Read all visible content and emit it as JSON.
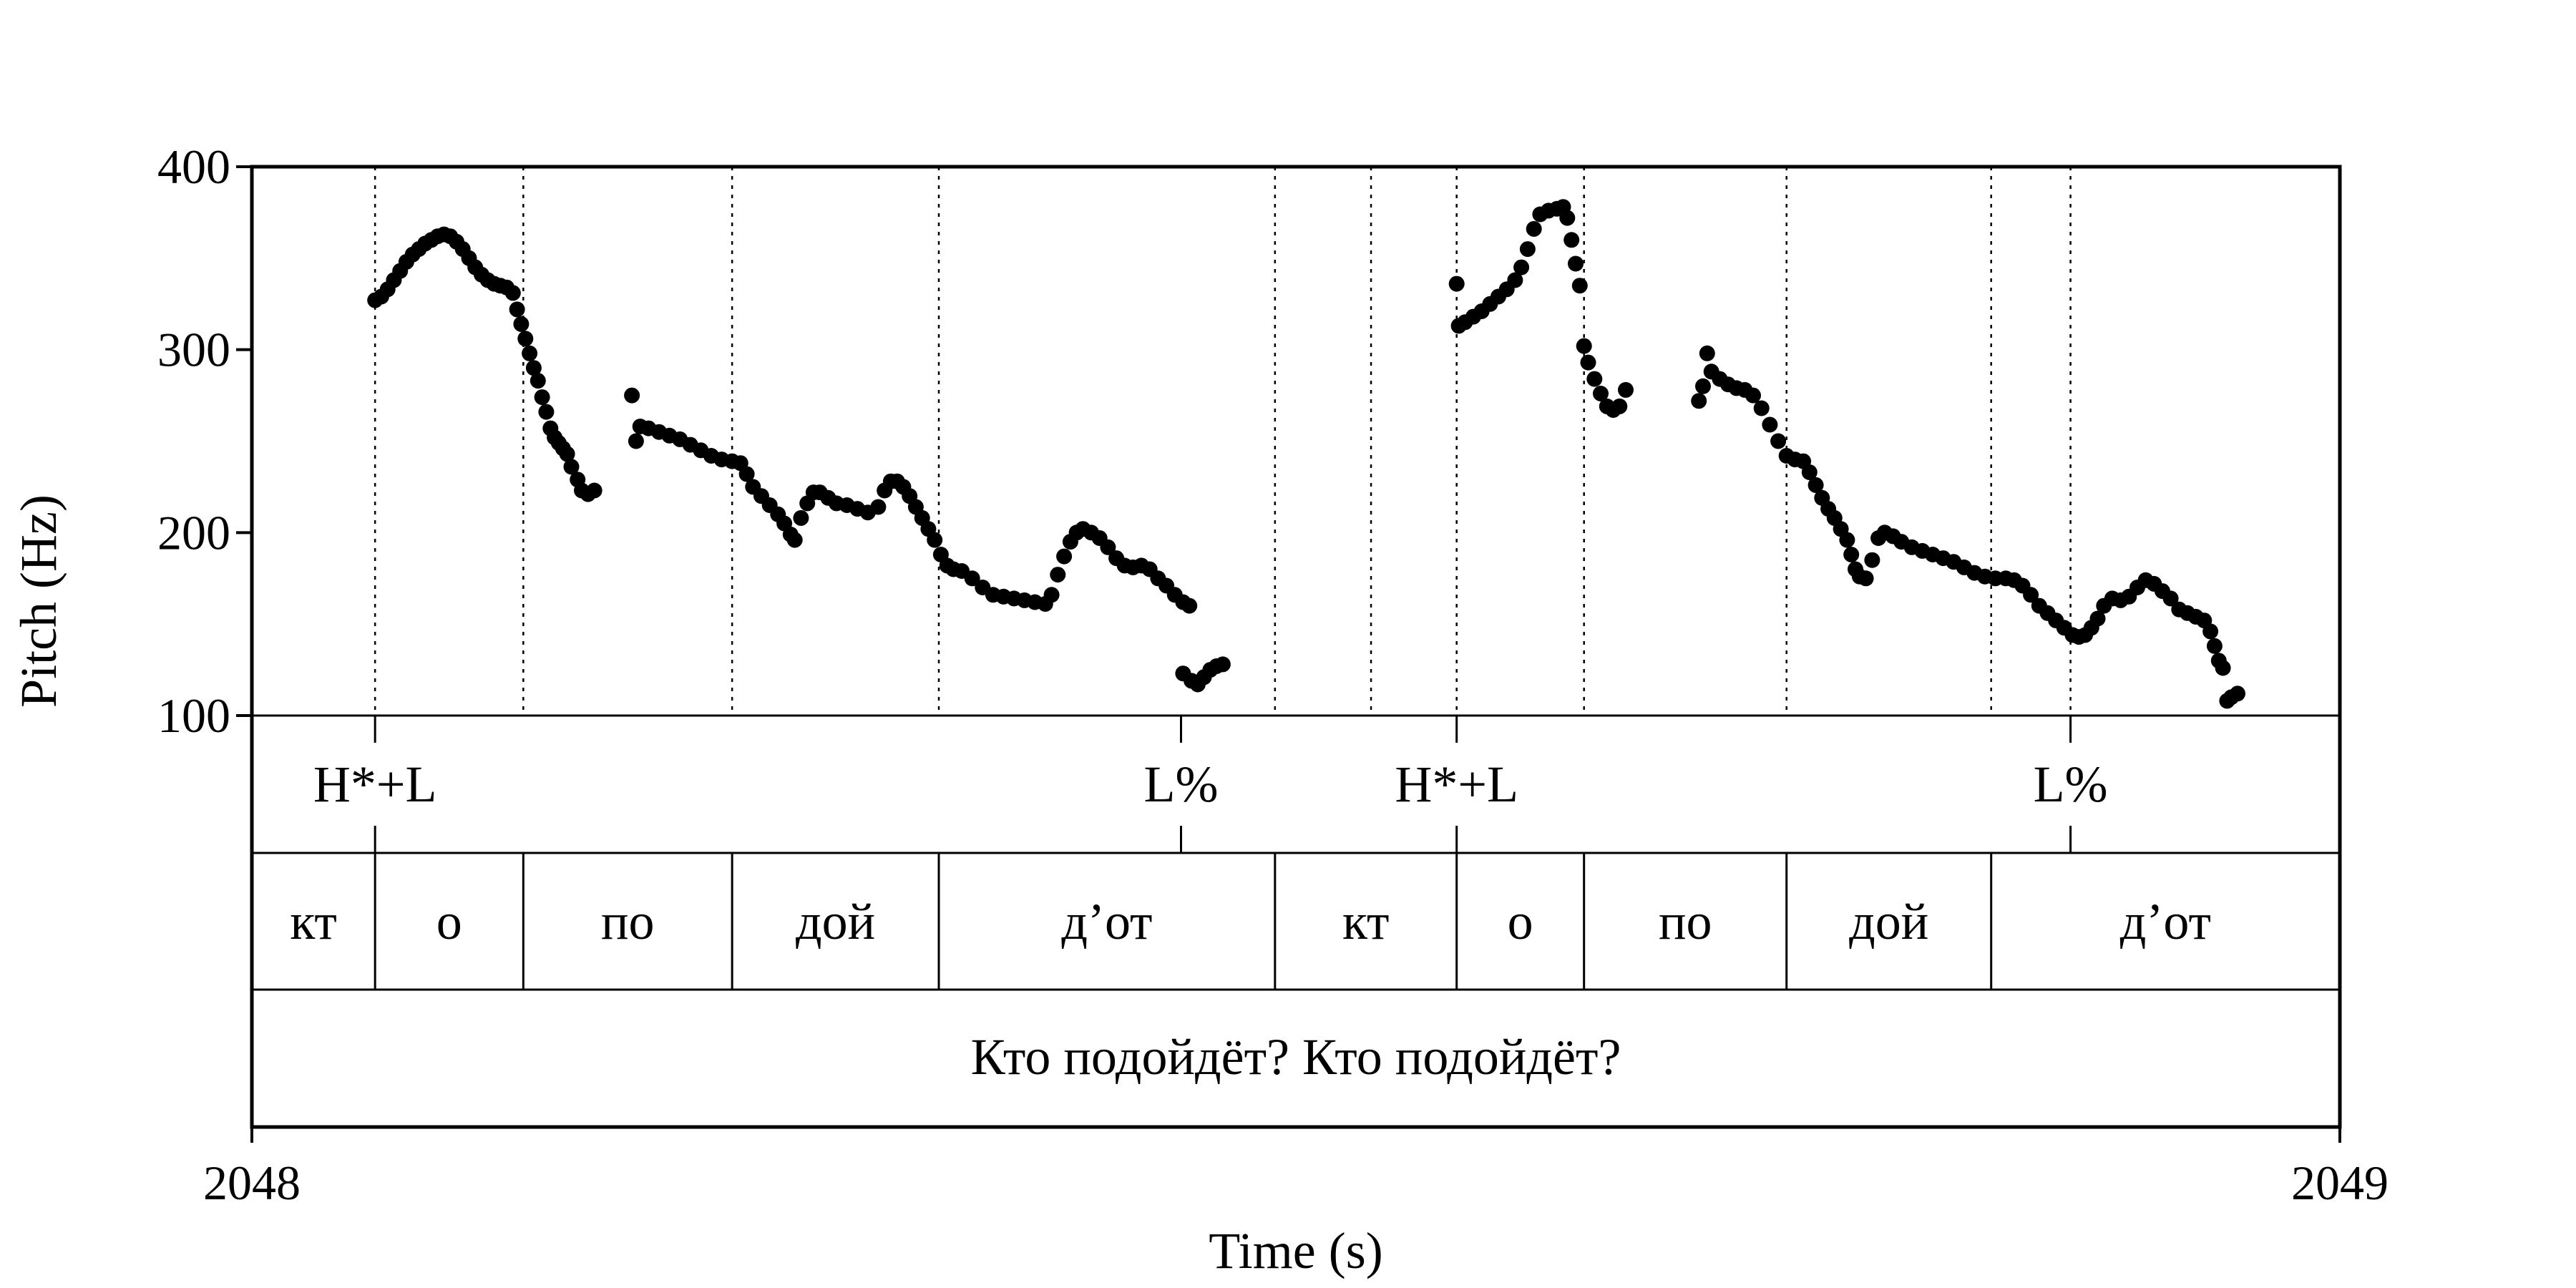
{
  "chart_data": {
    "type": "scatter",
    "title": "",
    "xlabel": "Time (s)",
    "ylabel": "Pitch (Hz)",
    "xlim": [
      2048,
      2049
    ],
    "ylim": [
      100,
      400
    ],
    "x_tick_labels": [
      "2048",
      "2049"
    ],
    "y_ticks": [
      100,
      200,
      300,
      400
    ],
    "y_tick_labels": [
      "100",
      "200",
      "300",
      "400"
    ],
    "grid": false,
    "legend": "none",
    "boundaries": [
      2048.059,
      2048.13,
      2048.23,
      2048.329,
      2048.49,
      2048.536,
      2048.577,
      2048.638,
      2048.735,
      2048.833,
      2048.871
    ],
    "tone_tier": {
      "points": [
        {
          "time": 2048.059,
          "label": "H*+L"
        },
        {
          "time": 2048.445,
          "label": "L%"
        },
        {
          "time": 2048.577,
          "label": "H*+L"
        },
        {
          "time": 2048.871,
          "label": "L%"
        }
      ]
    },
    "syllable_tier": {
      "intervals": [
        {
          "start": 2048.0,
          "end": 2048.059,
          "label": "кт"
        },
        {
          "start": 2048.059,
          "end": 2048.13,
          "label": "о"
        },
        {
          "start": 2048.13,
          "end": 2048.23,
          "label": "по"
        },
        {
          "start": 2048.23,
          "end": 2048.329,
          "label": "дой"
        },
        {
          "start": 2048.329,
          "end": 2048.49,
          "label": "д’от"
        },
        {
          "start": 2048.49,
          "end": 2048.577,
          "label": "кт"
        },
        {
          "start": 2048.577,
          "end": 2048.638,
          "label": "о"
        },
        {
          "start": 2048.638,
          "end": 2048.735,
          "label": "по"
        },
        {
          "start": 2048.735,
          "end": 2048.833,
          "label": "дой"
        },
        {
          "start": 2048.833,
          "end": 2049.0,
          "label": "д’от"
        }
      ]
    },
    "sentence_tier": {
      "label": "Кто подойдёт? Кто подойдёт?"
    },
    "series": [
      {
        "points": [
          [
            2048.059,
            327
          ],
          [
            2048.062,
            329
          ],
          [
            2048.065,
            333
          ],
          [
            2048.068,
            338
          ],
          [
            2048.071,
            343
          ],
          [
            2048.074,
            348
          ],
          [
            2048.077,
            352
          ],
          [
            2048.08,
            355
          ],
          [
            2048.083,
            358
          ],
          [
            2048.086,
            360
          ],
          [
            2048.089,
            362
          ],
          [
            2048.092,
            363
          ],
          [
            2048.095,
            362
          ],
          [
            2048.098,
            359
          ],
          [
            2048.101,
            355
          ],
          [
            2048.104,
            350
          ],
          [
            2048.107,
            345
          ],
          [
            2048.11,
            341
          ],
          [
            2048.113,
            338
          ],
          [
            2048.116,
            336
          ],
          [
            2048.119,
            335
          ],
          [
            2048.122,
            334
          ],
          [
            2048.125,
            331
          ],
          [
            2048.127,
            322
          ],
          [
            2048.129,
            314
          ],
          [
            2048.131,
            306
          ],
          [
            2048.133,
            298
          ],
          [
            2048.135,
            290
          ],
          [
            2048.137,
            283
          ],
          [
            2048.139,
            274
          ],
          [
            2048.141,
            266
          ],
          [
            2048.143,
            257
          ],
          [
            2048.145,
            252
          ],
          [
            2048.147,
            249
          ],
          [
            2048.149,
            246
          ],
          [
            2048.151,
            243
          ],
          [
            2048.153,
            236
          ],
          [
            2048.156,
            229
          ],
          [
            2048.158,
            223
          ],
          [
            2048.161,
            221
          ],
          [
            2048.164,
            223
          ],
          [
            2048.182,
            275
          ],
          [
            2048.184,
            250
          ],
          [
            2048.186,
            258
          ],
          [
            2048.19,
            257
          ],
          [
            2048.195,
            255
          ],
          [
            2048.2,
            253
          ],
          [
            2048.205,
            251
          ],
          [
            2048.21,
            248
          ],
          [
            2048.215,
            245
          ],
          [
            2048.22,
            242
          ],
          [
            2048.225,
            240
          ],
          [
            2048.23,
            239
          ],
          [
            2048.234,
            238
          ],
          [
            2048.237,
            232
          ],
          [
            2048.24,
            225
          ],
          [
            2048.244,
            220
          ],
          [
            2048.248,
            215
          ],
          [
            2048.252,
            210
          ],
          [
            2048.255,
            205
          ],
          [
            2048.258,
            199
          ],
          [
            2048.26,
            196
          ],
          [
            2048.263,
            208
          ],
          [
            2048.266,
            216
          ],
          [
            2048.269,
            222
          ],
          [
            2048.272,
            222
          ],
          [
            2048.276,
            219
          ],
          [
            2048.28,
            216
          ],
          [
            2048.285,
            215
          ],
          [
            2048.29,
            213
          ],
          [
            2048.295,
            211
          ],
          [
            2048.3,
            214
          ],
          [
            2048.303,
            223
          ],
          [
            2048.306,
            228
          ],
          [
            2048.309,
            228
          ],
          [
            2048.312,
            225
          ],
          [
            2048.315,
            220
          ],
          [
            2048.318,
            214
          ],
          [
            2048.321,
            208
          ],
          [
            2048.324,
            202
          ],
          [
            2048.327,
            196
          ],
          [
            2048.33,
            188
          ],
          [
            2048.333,
            182
          ],
          [
            2048.336,
            180
          ],
          [
            2048.34,
            179
          ],
          [
            2048.345,
            175
          ],
          [
            2048.35,
            170
          ],
          [
            2048.355,
            166
          ],
          [
            2048.36,
            165
          ],
          [
            2048.365,
            164
          ],
          [
            2048.37,
            163
          ],
          [
            2048.375,
            162
          ],
          [
            2048.38,
            161
          ],
          [
            2048.383,
            166
          ],
          [
            2048.386,
            177
          ],
          [
            2048.389,
            187
          ],
          [
            2048.392,
            195
          ],
          [
            2048.395,
            200
          ],
          [
            2048.398,
            202
          ],
          [
            2048.402,
            200
          ],
          [
            2048.406,
            197
          ],
          [
            2048.41,
            192
          ],
          [
            2048.414,
            186
          ],
          [
            2048.418,
            182
          ],
          [
            2048.422,
            181
          ],
          [
            2048.426,
            182
          ],
          [
            2048.43,
            180
          ],
          [
            2048.434,
            175
          ],
          [
            2048.438,
            171
          ],
          [
            2048.442,
            166
          ],
          [
            2048.446,
            162
          ],
          [
            2048.449,
            160
          ],
          [
            2048.446,
            123
          ],
          [
            2048.45,
            119
          ],
          [
            2048.453,
            117
          ],
          [
            2048.456,
            121
          ],
          [
            2048.459,
            125
          ],
          [
            2048.462,
            127
          ],
          [
            2048.465,
            128
          ],
          [
            2048.577,
            336
          ],
          [
            2048.578,
            313
          ],
          [
            2048.581,
            315
          ],
          [
            2048.585,
            318
          ],
          [
            2048.589,
            321
          ],
          [
            2048.593,
            325
          ],
          [
            2048.597,
            329
          ],
          [
            2048.601,
            333
          ],
          [
            2048.605,
            338
          ],
          [
            2048.608,
            345
          ],
          [
            2048.611,
            355
          ],
          [
            2048.614,
            366
          ],
          [
            2048.617,
            374
          ],
          [
            2048.621,
            376
          ],
          [
            2048.625,
            377
          ],
          [
            2048.628,
            378
          ],
          [
            2048.63,
            372
          ],
          [
            2048.632,
            360
          ],
          [
            2048.634,
            347
          ],
          [
            2048.636,
            335
          ],
          [
            2048.638,
            302
          ],
          [
            2048.64,
            293
          ],
          [
            2048.643,
            284
          ],
          [
            2048.646,
            276
          ],
          [
            2048.649,
            269
          ],
          [
            2048.652,
            267
          ],
          [
            2048.655,
            269
          ],
          [
            2048.658,
            278
          ],
          [
            2048.693,
            272
          ],
          [
            2048.695,
            280
          ],
          [
            2048.697,
            298
          ],
          [
            2048.699,
            288
          ],
          [
            2048.703,
            284
          ],
          [
            2048.707,
            281
          ],
          [
            2048.711,
            279
          ],
          [
            2048.715,
            278
          ],
          [
            2048.719,
            275
          ],
          [
            2048.723,
            268
          ],
          [
            2048.727,
            259
          ],
          [
            2048.731,
            250
          ],
          [
            2048.735,
            242
          ],
          [
            2048.739,
            240
          ],
          [
            2048.743,
            239
          ],
          [
            2048.746,
            233
          ],
          [
            2048.749,
            226
          ],
          [
            2048.752,
            219
          ],
          [
            2048.755,
            213
          ],
          [
            2048.758,
            208
          ],
          [
            2048.761,
            202
          ],
          [
            2048.764,
            196
          ],
          [
            2048.766,
            188
          ],
          [
            2048.768,
            180
          ],
          [
            2048.77,
            176
          ],
          [
            2048.773,
            175
          ],
          [
            2048.776,
            185
          ],
          [
            2048.779,
            197
          ],
          [
            2048.782,
            200
          ],
          [
            2048.786,
            198
          ],
          [
            2048.79,
            195
          ],
          [
            2048.795,
            192
          ],
          [
            2048.8,
            190
          ],
          [
            2048.805,
            188
          ],
          [
            2048.81,
            186
          ],
          [
            2048.815,
            184
          ],
          [
            2048.82,
            181
          ],
          [
            2048.825,
            178
          ],
          [
            2048.83,
            176
          ],
          [
            2048.835,
            175
          ],
          [
            2048.84,
            175
          ],
          [
            2048.844,
            174
          ],
          [
            2048.848,
            171
          ],
          [
            2048.852,
            166
          ],
          [
            2048.856,
            160
          ],
          [
            2048.86,
            156
          ],
          [
            2048.864,
            152
          ],
          [
            2048.868,
            148
          ],
          [
            2048.872,
            144
          ],
          [
            2048.875,
            143
          ],
          [
            2048.878,
            144
          ],
          [
            2048.881,
            148
          ],
          [
            2048.884,
            153
          ],
          [
            2048.887,
            160
          ],
          [
            2048.891,
            164
          ],
          [
            2048.895,
            163
          ],
          [
            2048.899,
            165
          ],
          [
            2048.903,
            170
          ],
          [
            2048.907,
            174
          ],
          [
            2048.911,
            172
          ],
          [
            2048.915,
            168
          ],
          [
            2048.919,
            164
          ],
          [
            2048.923,
            158
          ],
          [
            2048.927,
            156
          ],
          [
            2048.931,
            154
          ],
          [
            2048.935,
            152
          ],
          [
            2048.938,
            146
          ],
          [
            2048.94,
            138
          ],
          [
            2048.942,
            130
          ],
          [
            2048.944,
            126
          ],
          [
            2048.946,
            108
          ],
          [
            2048.948,
            110
          ],
          [
            2048.951,
            112
          ]
        ]
      }
    ]
  }
}
